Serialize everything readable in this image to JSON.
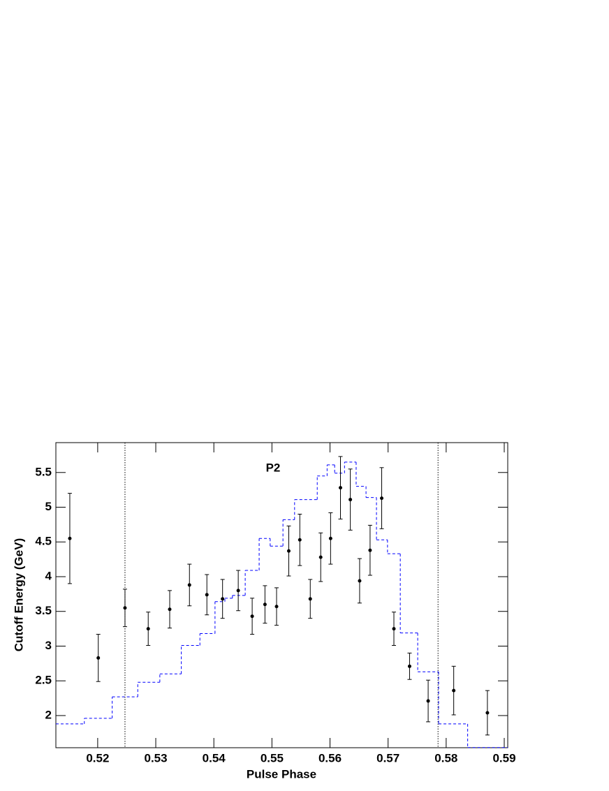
{
  "chart_data": {
    "type": "scatter",
    "annotation": "P2",
    "x_label": "Pulse Phase",
    "y_label": "Cutoff Energy (GeV)",
    "x": [
      0.5152,
      0.5201,
      0.5247,
      0.5287,
      0.5324,
      0.5358,
      0.5388,
      0.5415,
      0.5442,
      0.5466,
      0.5488,
      0.5508,
      0.5529,
      0.5548,
      0.5566,
      0.5584,
      0.5601,
      0.5618,
      0.5635,
      0.5651,
      0.5669,
      0.5689,
      0.571,
      0.5737,
      0.5769,
      0.5813,
      0.5871
    ],
    "values": [
      4.55,
      2.83,
      3.55,
      3.25,
      3.53,
      3.88,
      3.74,
      3.68,
      3.8,
      3.43,
      3.6,
      3.57,
      4.37,
      4.53,
      3.68,
      4.28,
      4.55,
      5.28,
      5.11,
      3.94,
      4.38,
      5.13,
      3.25,
      2.71,
      2.21,
      2.36,
      2.04
    ],
    "errors": [
      0.65,
      0.34,
      0.27,
      0.24,
      0.27,
      0.3,
      0.29,
      0.28,
      0.29,
      0.26,
      0.27,
      0.27,
      0.36,
      0.37,
      0.28,
      0.35,
      0.37,
      0.45,
      0.44,
      0.32,
      0.36,
      0.44,
      0.24,
      0.19,
      0.3,
      0.35,
      0.32
    ],
    "color": "#000000",
    "overlay": {
      "type": "step",
      "color": "#0000ff",
      "bins": [
        0.5128,
        0.5177,
        0.5225,
        0.5269,
        0.5307,
        0.5344,
        0.5376,
        0.5402,
        0.5419,
        0.5432,
        0.5454,
        0.5478,
        0.5497,
        0.5519,
        0.5539,
        0.5578,
        0.5595,
        0.5608,
        0.5625,
        0.5645,
        0.5662,
        0.568,
        0.5699,
        0.5721,
        0.5751,
        0.5787,
        0.5837,
        0.5906
      ],
      "values": [
        1.88,
        1.96,
        2.27,
        2.48,
        2.6,
        3.01,
        3.18,
        3.64,
        3.69,
        3.73,
        4.09,
        4.55,
        4.44,
        4.82,
        5.11,
        5.45,
        5.61,
        5.49,
        5.65,
        5.3,
        5.14,
        4.53,
        4.33,
        3.19,
        2.63,
        1.88,
        1.54
      ]
    },
    "vlines": [
      0.5247,
      0.5786
    ],
    "xlim": [
      0.5128,
      0.5906
    ],
    "ylim": [
      1.537,
      5.93
    ],
    "xticks": [
      0.52,
      0.53,
      0.54,
      0.55,
      0.56,
      0.57,
      0.58,
      0.59
    ],
    "yticks": [
      2,
      2.5,
      3,
      3.5,
      4,
      4.5,
      5,
      5.5
    ]
  }
}
